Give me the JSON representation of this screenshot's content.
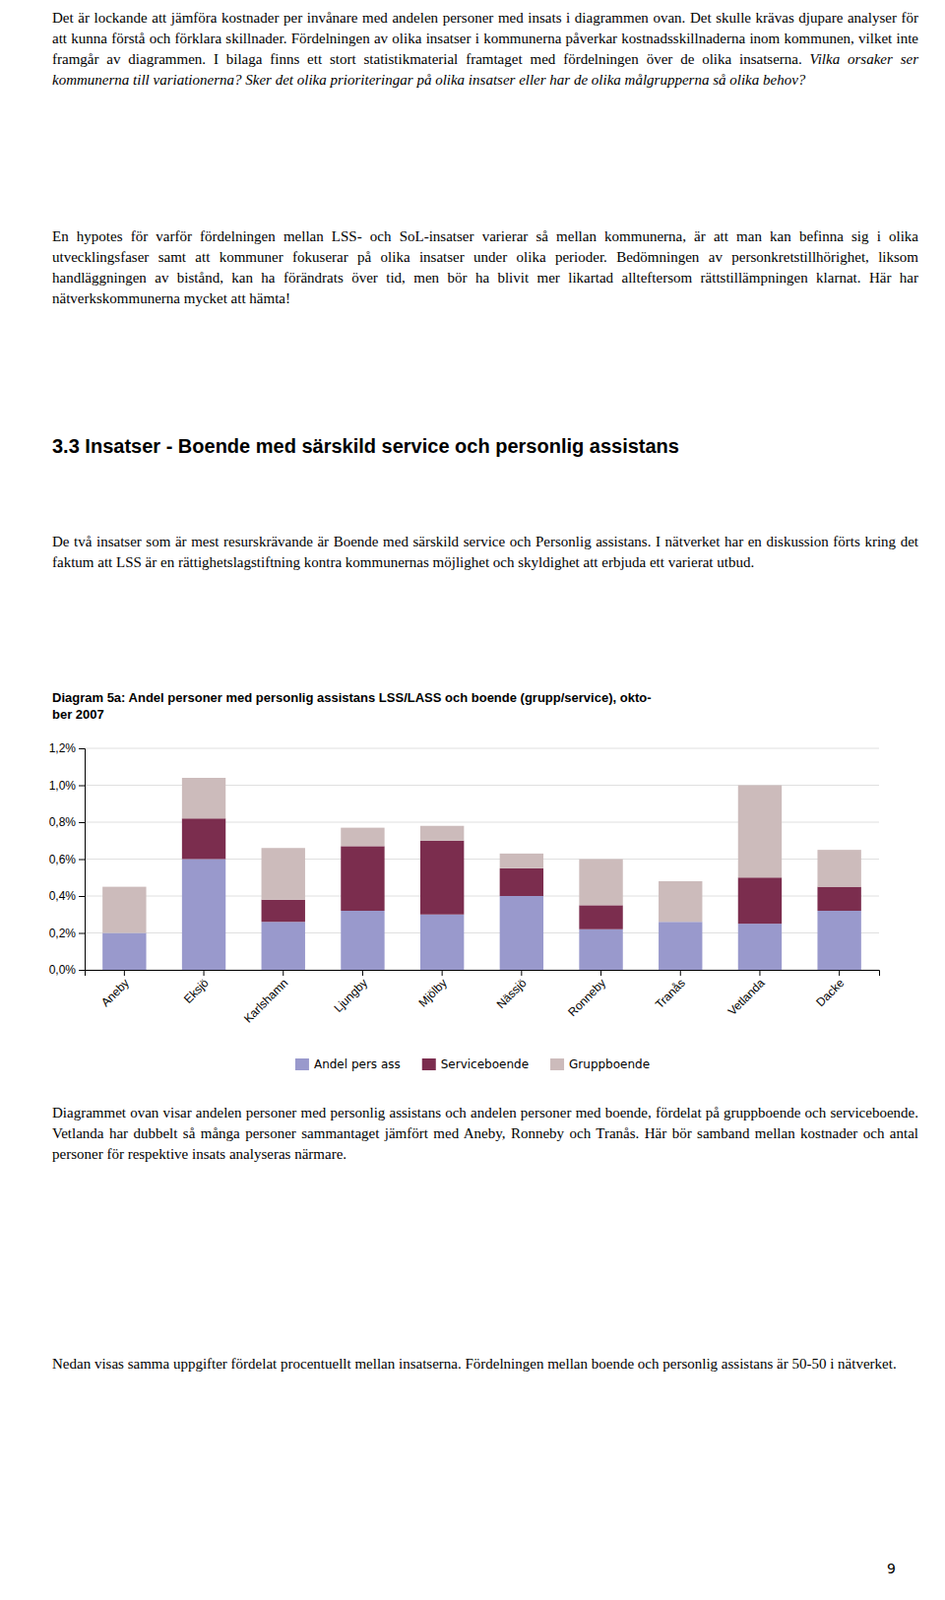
{
  "chart_data": {
    "type": "bar",
    "stacked": true,
    "title": "Diagram 5a: Andel personer med personlig assistans LSS/LASS och boende (grupp/service), okto-\nber 2007",
    "categories": [
      "Aneby",
      "Eksjö",
      "Karlshamn",
      "Ljungby",
      "Mjölby",
      "Nässjö",
      "Ronneby",
      "Tranås",
      "Vetlanda",
      "Dacke"
    ],
    "series": [
      {
        "name": "Andel pers ass",
        "color": "#9999cc",
        "values": [
          0.002,
          0.006,
          0.0026,
          0.0032,
          0.003,
          0.004,
          0.0022,
          0.0026,
          0.0025,
          0.0032
        ]
      },
      {
        "name": "Serviceboende",
        "color": "#7b2d4e",
        "values": [
          0.0,
          0.0022,
          0.0012,
          0.0035,
          0.004,
          0.0015,
          0.0013,
          0.0,
          0.0025,
          0.0013
        ]
      },
      {
        "name": "Gruppboende",
        "color": "#ccbbbb",
        "values": [
          0.0025,
          0.0022,
          0.0028,
          0.001,
          0.0008,
          0.0008,
          0.0025,
          0.0022,
          0.005,
          0.002
        ]
      }
    ],
    "ylim": [
      0,
      0.012
    ],
    "yticks": [
      {
        "value": 0.0,
        "label": "0,0%"
      },
      {
        "value": 0.002,
        "label": "0,2%"
      },
      {
        "value": 0.004,
        "label": "0,4%"
      },
      {
        "value": 0.006,
        "label": "0,6%"
      },
      {
        "value": 0.008,
        "label": "0,8%"
      },
      {
        "value": 0.01,
        "label": "1,0%"
      },
      {
        "value": 0.012,
        "label": "1,2%"
      }
    ],
    "grid": true,
    "legend": "bottom"
  },
  "page_text": {
    "block1": "Det är lockande att jämföra kostnader per invånare med andelen personer med insats i diagrammen ovan. Det skulle krävas djupare analyser för att kunna förstå och förklara skillnader. Fördelningen av olika insatser i kommunerna påverkar kostnadsskillnaderna inom kommunen, vilket inte framgår av diagrammen. I bilaga finns ett stort statistikmaterial framtaget med fördelningen över de olika insatserna.",
    "block1_italic": "Vilka orsaker ser kommunerna till variationerna? Sker det olika prioriteringar på olika insatser eller har de olika målgrupperna så olika behov?",
    "block2": "En hypotes för varför fördelningen mellan LSS- och SoL-insatser varierar så mellan kommunerna, är att man kan befinna sig i olika utvecklingsfaser samt att kommuner fokuserar på olika insatser under olika perioder. Bedömningen av personkretstillhörighet, liksom handläggningen av bistånd, kan ha förändrats över tid, men bör ha blivit mer likartad allteftersom rättstillämpningen klarnat. Här har nätverkskommunerna mycket att hämta!",
    "section_header": "3.3 Insatser - Boende med särskild service och personlig assistans",
    "block3": "De två insatser som är mest resurskrävande är Boende med särskild service och Personlig assistans. I nätverket har en diskussion förts kring det faktum att LSS är en rättighetslagstiftning kontra kommunernas möjlighet och skyldighet att erbjuda ett varierat utbud.",
    "block4": "Diagrammet ovan visar andelen personer med personlig assistans och andelen personer med boende, fördelat på gruppboende och serviceboende. Vetlanda har dubbelt så många personer sammantaget jämfört med Aneby, Ronneby och Tranås. Här bör samband mellan kostnader och antal personer för respektive insats analyseras närmare.",
    "block5": "Nedan visas samma uppgifter fördelat procentuellt mellan insatserna. Fördelningen mellan boende och personlig assistans är 50-50 i nätverket.",
    "page_number": "9"
  }
}
